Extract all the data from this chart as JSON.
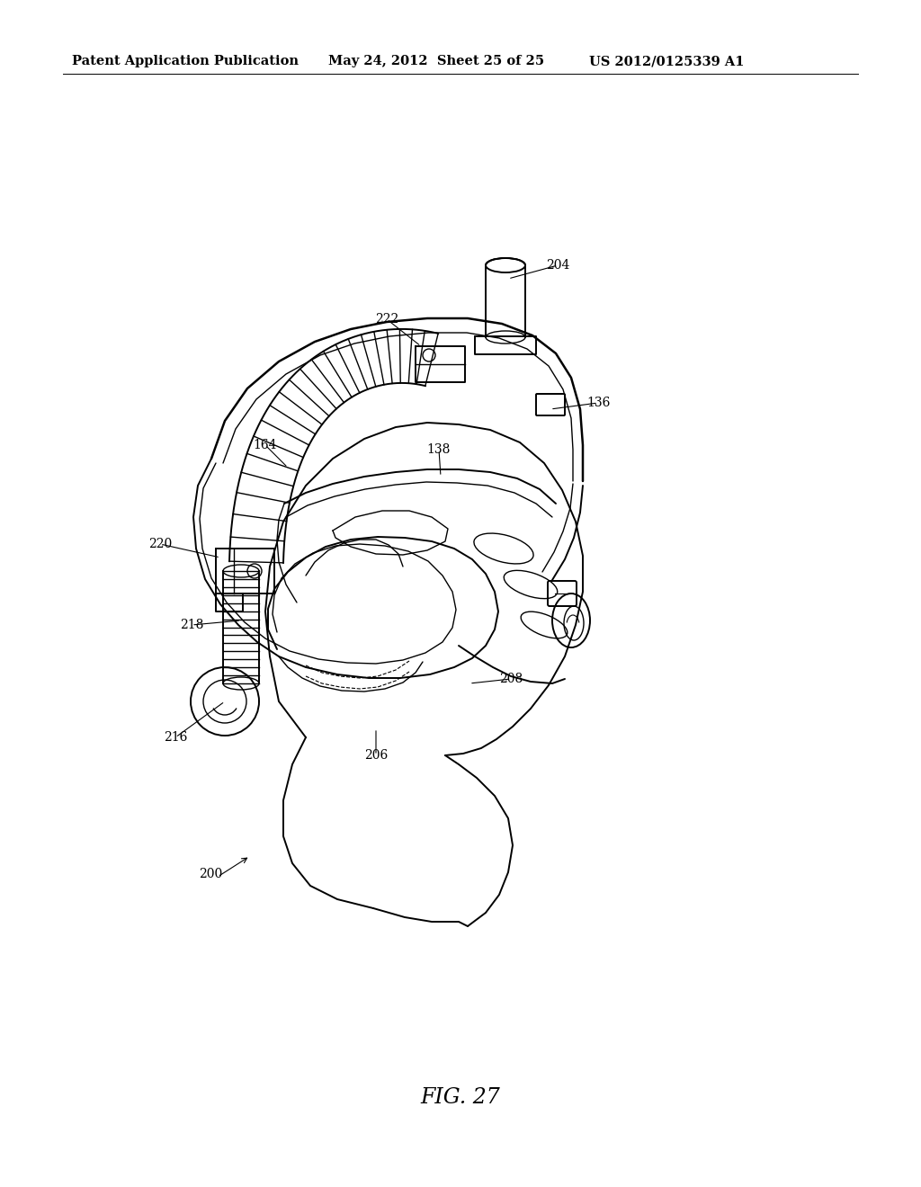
{
  "header_left": "Patent Application Publication",
  "header_mid": "May 24, 2012  Sheet 25 of 25",
  "header_right": "US 2012/0125339 A1",
  "figure_caption": "FIG. 27",
  "background_color": "#ffffff",
  "text_color": "#000000",
  "header_fontsize": 10.5,
  "caption_fontsize": 17,
  "label_fontsize": 10
}
